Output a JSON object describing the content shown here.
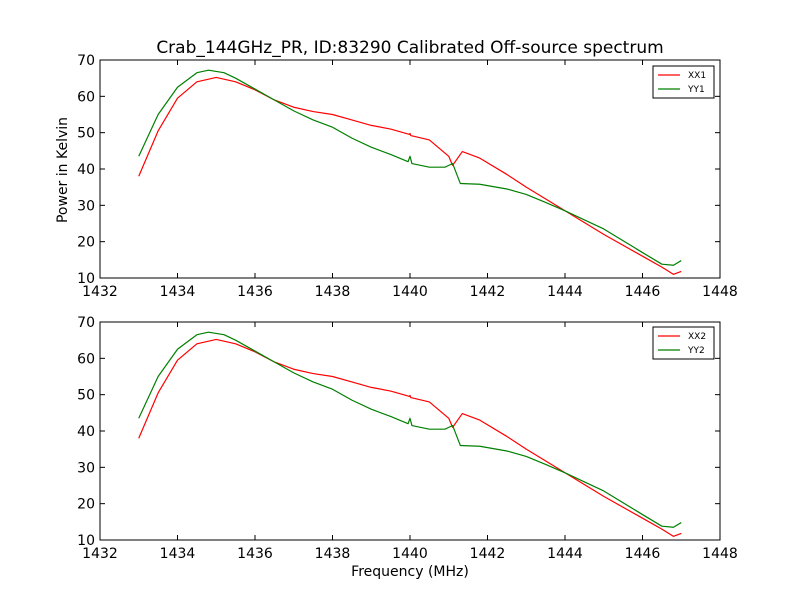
{
  "title": "Crab_144GHz_PR, ID:83290 Calibrated Off-source spectrum",
  "chart_data": [
    {
      "type": "line",
      "title": "Crab_144GHz_PR, ID:83290 Calibrated Off-source spectrum",
      "xlabel": "",
      "ylabel": "Power in Kelvin",
      "xlim": [
        1432,
        1448
      ],
      "ylim": [
        10,
        70
      ],
      "xticks": [
        "1432",
        "1434",
        "1436",
        "1438",
        "1440",
        "1442",
        "1444",
        "1446",
        "1448"
      ],
      "yticks": [
        "10",
        "20",
        "30",
        "40",
        "50",
        "60",
        "70"
      ],
      "grid": false,
      "legend_position": "top-right",
      "series": [
        {
          "name": "XX1",
          "color": "#ff0000",
          "points": [
            [
              1433.0,
              38
            ],
            [
              1433.5,
              50.5
            ],
            [
              1434.0,
              59.5
            ],
            [
              1434.5,
              64.0
            ],
            [
              1435.0,
              65.2
            ],
            [
              1435.5,
              64.0
            ],
            [
              1436.0,
              61.8
            ],
            [
              1436.5,
              59.0
            ],
            [
              1437.0,
              57.0
            ],
            [
              1437.5,
              55.8
            ],
            [
              1438.0,
              55.0
            ],
            [
              1438.5,
              53.5
            ],
            [
              1439.0,
              52.0
            ],
            [
              1439.5,
              51.0
            ],
            [
              1439.99,
              49.5
            ],
            [
              1440.0,
              49.8
            ],
            [
              1440.02,
              49.2
            ],
            [
              1440.5,
              48.0
            ],
            [
              1441.0,
              43.5
            ],
            [
              1441.1,
              41.0
            ],
            [
              1441.35,
              44.8
            ],
            [
              1441.8,
              43.0
            ],
            [
              1442.5,
              38.5
            ],
            [
              1443.0,
              35.0
            ],
            [
              1444.0,
              28.5
            ],
            [
              1445.0,
              22.0
            ],
            [
              1446.0,
              16.0
            ],
            [
              1446.5,
              13.0
            ],
            [
              1446.8,
              11.0
            ],
            [
              1447.0,
              11.8
            ]
          ]
        },
        {
          "name": "YY1",
          "color": "#008000",
          "points": [
            [
              1433.0,
              43.5
            ],
            [
              1433.5,
              55.0
            ],
            [
              1434.0,
              62.5
            ],
            [
              1434.5,
              66.5
            ],
            [
              1434.8,
              67.2
            ],
            [
              1435.2,
              66.5
            ],
            [
              1435.5,
              65.0
            ],
            [
              1436.0,
              62.0
            ],
            [
              1436.5,
              59.0
            ],
            [
              1437.0,
              56.0
            ],
            [
              1437.5,
              53.5
            ],
            [
              1438.0,
              51.5
            ],
            [
              1438.5,
              48.5
            ],
            [
              1439.0,
              46.0
            ],
            [
              1439.5,
              44.0
            ],
            [
              1439.95,
              42.0
            ],
            [
              1440.0,
              43.5
            ],
            [
              1440.05,
              41.5
            ],
            [
              1440.5,
              40.5
            ],
            [
              1440.9,
              40.5
            ],
            [
              1441.0,
              41.0
            ],
            [
              1441.1,
              41.5
            ],
            [
              1441.3,
              36.0
            ],
            [
              1441.8,
              35.8
            ],
            [
              1442.5,
              34.5
            ],
            [
              1443.0,
              33.0
            ],
            [
              1443.5,
              30.8
            ],
            [
              1444.0,
              28.5
            ],
            [
              1445.0,
              23.5
            ],
            [
              1446.0,
              17.0
            ],
            [
              1446.5,
              13.8
            ],
            [
              1446.8,
              13.5
            ],
            [
              1447.0,
              14.8
            ]
          ]
        }
      ]
    },
    {
      "type": "line",
      "title": "",
      "xlabel": "Frequency (MHz)",
      "ylabel": "",
      "xlim": [
        1432,
        1448
      ],
      "ylim": [
        10,
        70
      ],
      "xticks": [
        "1432",
        "1434",
        "1436",
        "1438",
        "1440",
        "1442",
        "1444",
        "1446",
        "1448"
      ],
      "yticks": [
        "10",
        "20",
        "30",
        "40",
        "50",
        "60",
        "70"
      ],
      "grid": false,
      "legend_position": "top-right",
      "series": [
        {
          "name": "XX2",
          "color": "#ff0000",
          "points": [
            [
              1433.0,
              38
            ],
            [
              1433.5,
              50.5
            ],
            [
              1434.0,
              59.5
            ],
            [
              1434.5,
              64.0
            ],
            [
              1435.0,
              65.2
            ],
            [
              1435.5,
              64.0
            ],
            [
              1436.0,
              61.8
            ],
            [
              1436.5,
              59.0
            ],
            [
              1437.0,
              57.0
            ],
            [
              1437.5,
              55.8
            ],
            [
              1438.0,
              55.0
            ],
            [
              1438.5,
              53.5
            ],
            [
              1439.0,
              52.0
            ],
            [
              1439.5,
              51.0
            ],
            [
              1439.99,
              49.5
            ],
            [
              1440.0,
              49.8
            ],
            [
              1440.02,
              49.2
            ],
            [
              1440.5,
              48.0
            ],
            [
              1441.0,
              43.5
            ],
            [
              1441.1,
              41.0
            ],
            [
              1441.35,
              44.8
            ],
            [
              1441.8,
              43.0
            ],
            [
              1442.5,
              38.5
            ],
            [
              1443.0,
              35.0
            ],
            [
              1444.0,
              28.5
            ],
            [
              1445.0,
              22.0
            ],
            [
              1446.0,
              16.0
            ],
            [
              1446.5,
              13.0
            ],
            [
              1446.8,
              11.0
            ],
            [
              1447.0,
              11.8
            ]
          ]
        },
        {
          "name": "YY2",
          "color": "#008000",
          "points": [
            [
              1433.0,
              43.5
            ],
            [
              1433.5,
              55.0
            ],
            [
              1434.0,
              62.5
            ],
            [
              1434.5,
              66.5
            ],
            [
              1434.8,
              67.2
            ],
            [
              1435.2,
              66.5
            ],
            [
              1435.5,
              65.0
            ],
            [
              1436.0,
              62.0
            ],
            [
              1436.5,
              59.0
            ],
            [
              1437.0,
              56.0
            ],
            [
              1437.5,
              53.5
            ],
            [
              1438.0,
              51.5
            ],
            [
              1438.5,
              48.5
            ],
            [
              1439.0,
              46.0
            ],
            [
              1439.5,
              44.0
            ],
            [
              1439.95,
              42.0
            ],
            [
              1440.0,
              43.5
            ],
            [
              1440.05,
              41.5
            ],
            [
              1440.5,
              40.5
            ],
            [
              1440.9,
              40.5
            ],
            [
              1441.0,
              41.0
            ],
            [
              1441.1,
              41.5
            ],
            [
              1441.3,
              36.0
            ],
            [
              1441.8,
              35.8
            ],
            [
              1442.5,
              34.5
            ],
            [
              1443.0,
              33.0
            ],
            [
              1443.5,
              30.8
            ],
            [
              1444.0,
              28.5
            ],
            [
              1445.0,
              23.5
            ],
            [
              1446.0,
              17.0
            ],
            [
              1446.5,
              13.8
            ],
            [
              1446.8,
              13.5
            ],
            [
              1447.0,
              14.8
            ]
          ]
        }
      ]
    }
  ]
}
